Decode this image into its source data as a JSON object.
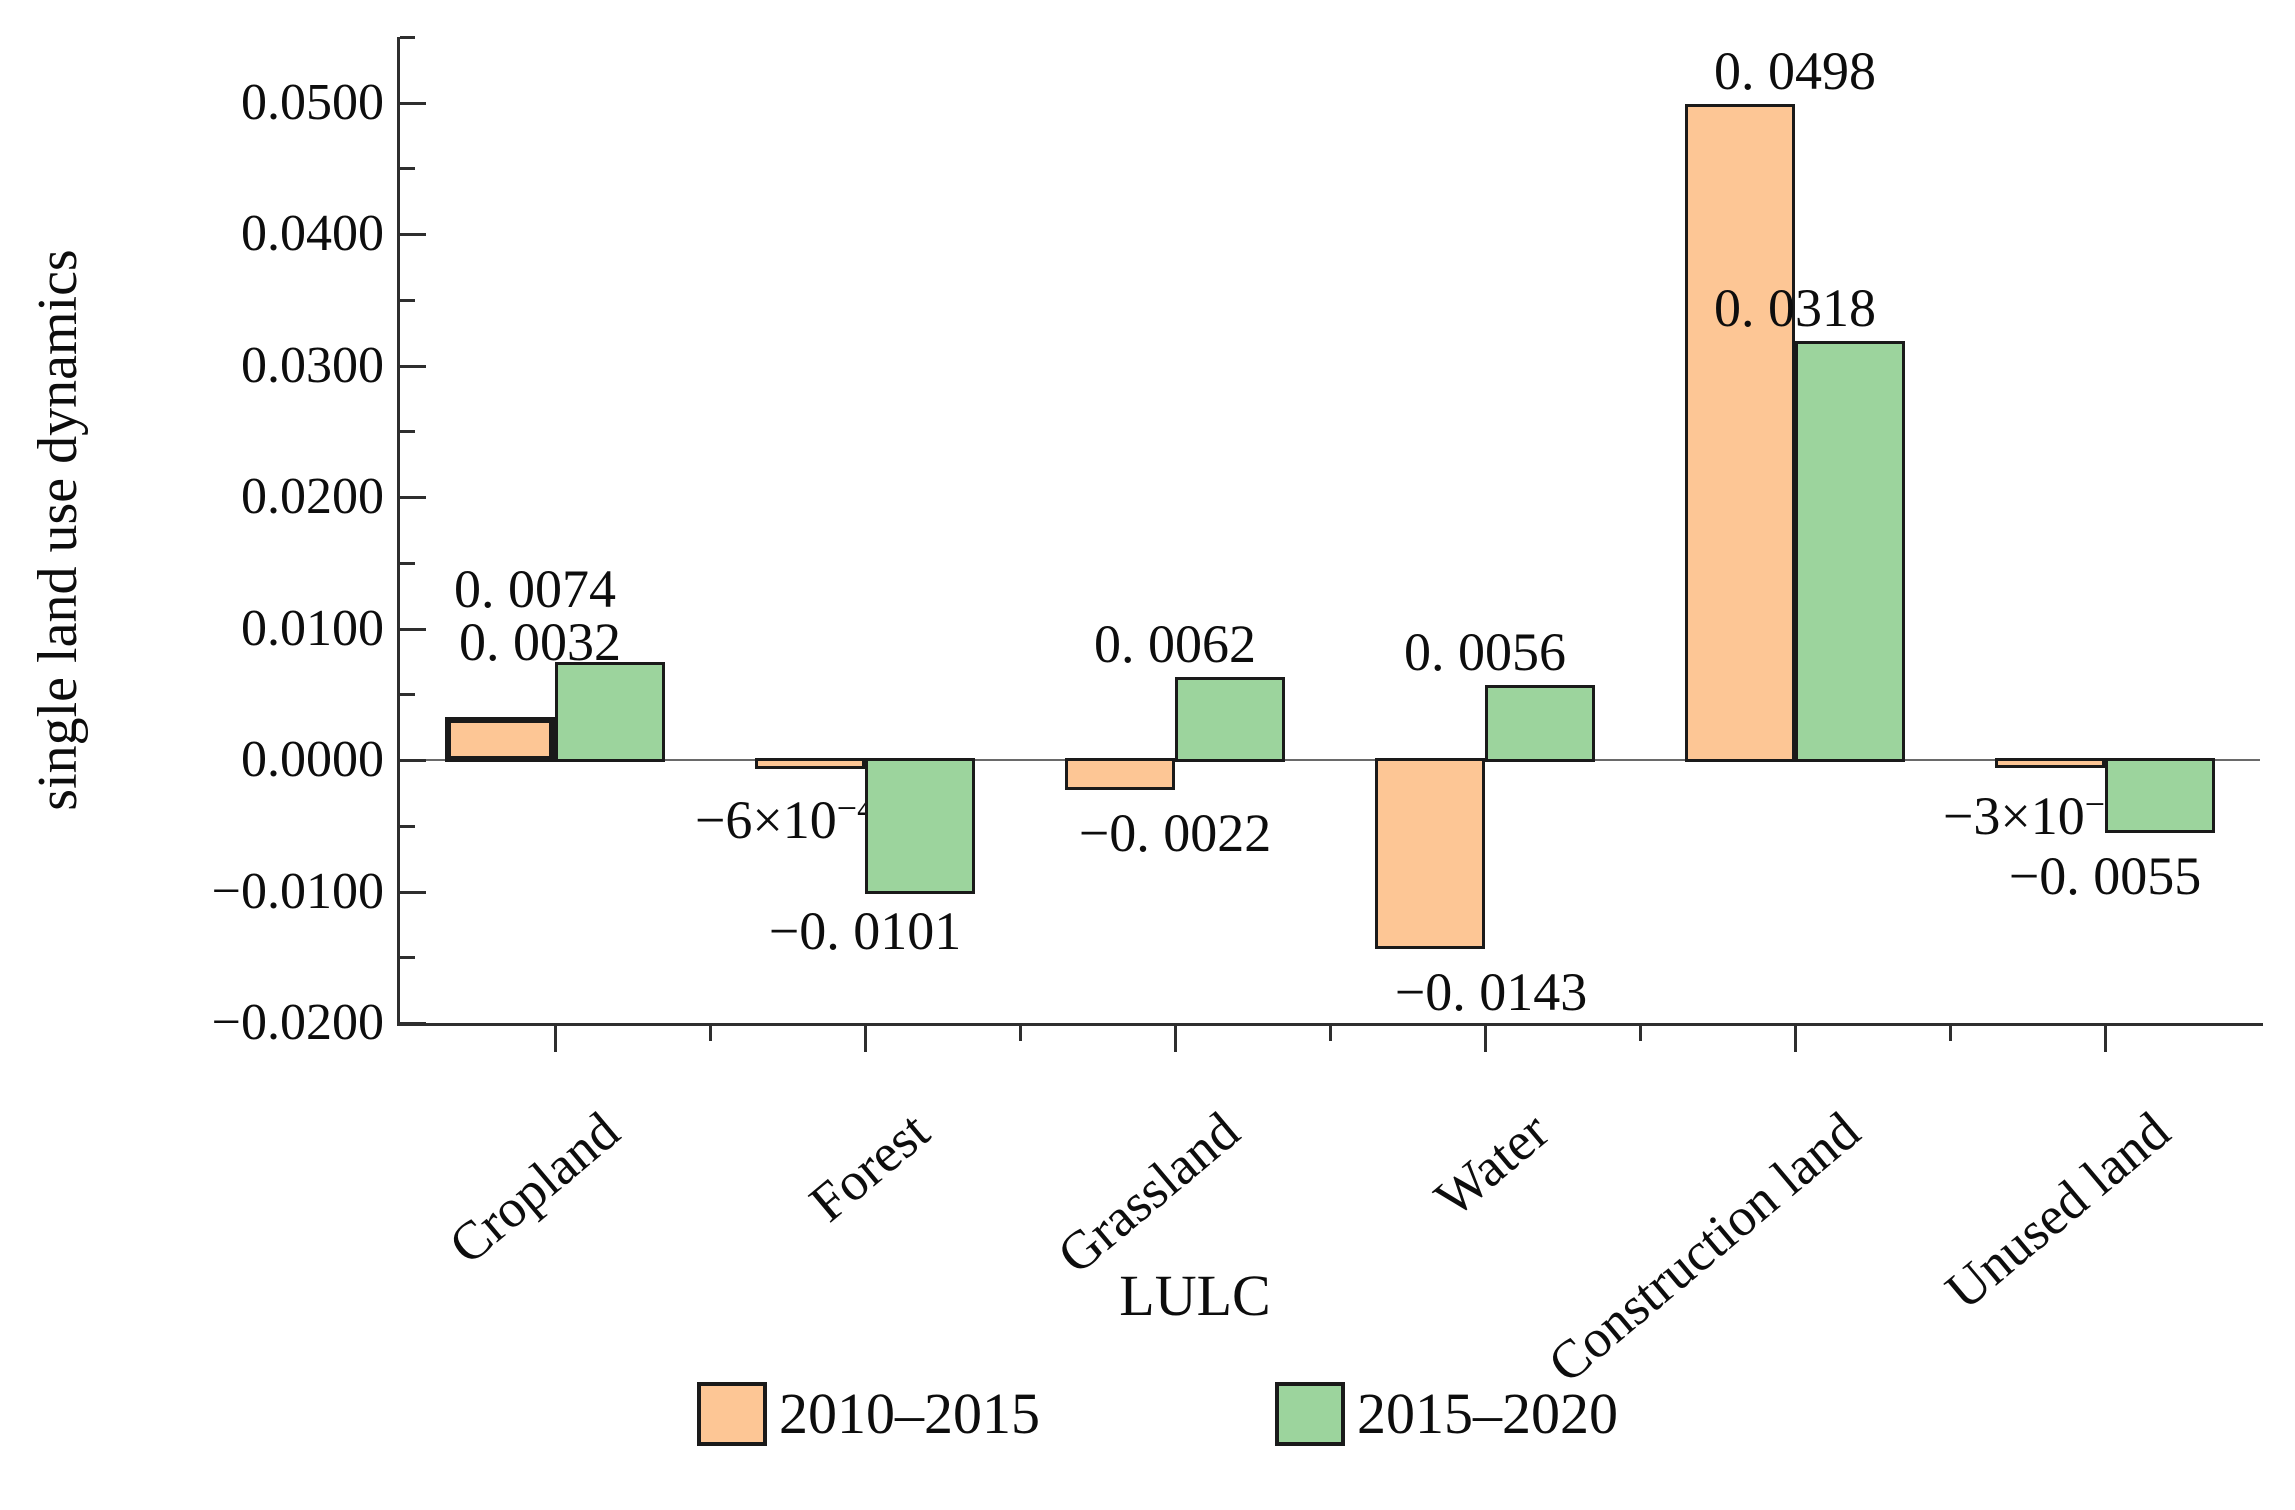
{
  "figure": {
    "background": "#ffffff",
    "y_axis_title": "single land use dynamics",
    "x_axis_title": "LULC"
  },
  "chart_data": {
    "type": "bar",
    "title": "",
    "xlabel": "LULC",
    "ylabel": "single land use dynamics",
    "grid": false,
    "legend_position": "bottom",
    "ylim": [
      -0.02,
      0.055
    ],
    "y_major_tick_values": [
      0.05,
      0.04,
      0.03,
      0.02,
      0.01,
      0.0,
      -0.01,
      -0.02
    ],
    "y_major_tick_labels": [
      "0.0500",
      "0.0400",
      "0.0300",
      "0.0200",
      "0.0100",
      "0.0000",
      "−0.0100",
      "−0.0200"
    ],
    "y_minor_tick_values": [
      0.055,
      0.045,
      0.035,
      0.025,
      0.015,
      0.005,
      -0.005,
      -0.015
    ],
    "categories": [
      "Cropland",
      "Forest",
      "Grassland",
      "Water",
      "Construction land",
      "Unused land"
    ],
    "series": [
      {
        "name": "2010–2015",
        "color": "#FDC695",
        "border_color": "#1a1a1a",
        "values": [
          0.0032,
          -0.0006,
          -0.0022,
          -0.0143,
          0.0498,
          -0.0003
        ],
        "labels": [
          {
            "text": "0. 0032"
          },
          {
            "text": "−6×10",
            "sup": "−4"
          },
          {
            "text": "−0. 0022"
          },
          {
            "text": "−0. 0143"
          },
          {
            "text": "0. 0498"
          },
          {
            "text": "−3×10",
            "sup": "−4"
          }
        ]
      },
      {
        "name": "2015–2020",
        "color": "#9CD49D",
        "border_color": "#1a1a1a",
        "values": [
          0.0074,
          -0.0101,
          0.0062,
          0.0056,
          0.0318,
          -0.0055
        ],
        "labels": [
          {
            "text": "0. 0074"
          },
          {
            "text": "−0. 0101"
          },
          {
            "text": "0. 0062"
          },
          {
            "text": "0. 0056"
          },
          {
            "text": "0. 0318"
          },
          {
            "text": "−0. 0055"
          }
        ]
      }
    ]
  }
}
